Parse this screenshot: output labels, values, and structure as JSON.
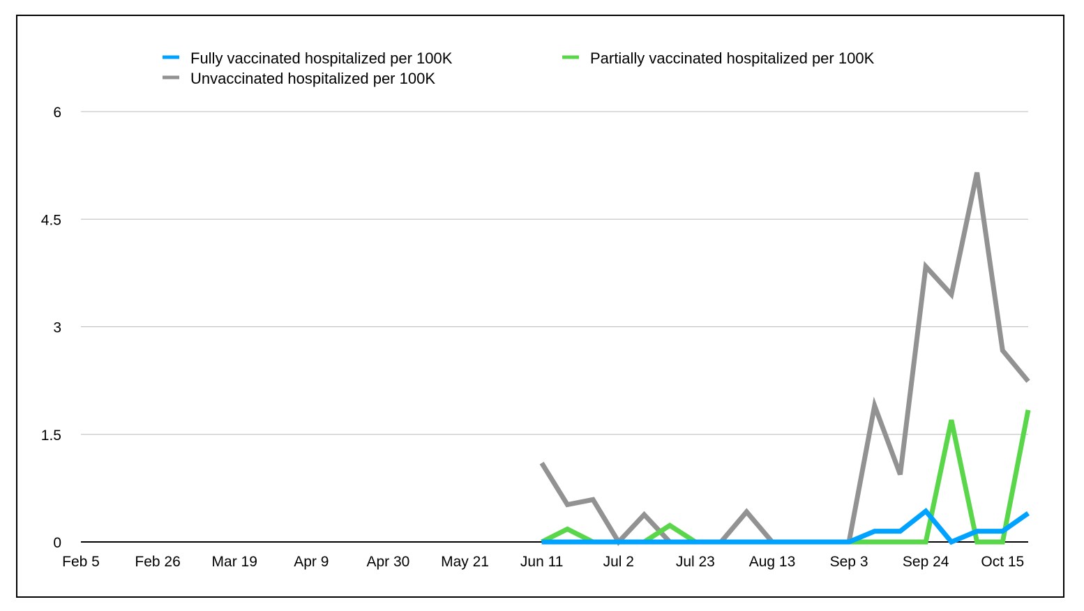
{
  "chart_data": {
    "type": "line",
    "title": "",
    "xlabel": "",
    "ylabel": "",
    "ylim": [
      0,
      6
    ],
    "yticks": [
      "0",
      "1.5",
      "3",
      "4.5",
      "6"
    ],
    "ytick_values": [
      0,
      1.5,
      3,
      4.5,
      6
    ],
    "xtick_labels": [
      "Feb 5",
      "Feb 26",
      "Mar 19",
      "Apr 9",
      "Apr 30",
      "May 21",
      "Jun 11",
      "Jul 2",
      "Jul 23",
      "Aug 13",
      "Sep 3",
      "Sep 24",
      "Oct 15"
    ],
    "x_weeks_total": 38,
    "data_start_week": 18,
    "x": [
      "Jun 11",
      "Jun 18",
      "Jun 25",
      "Jul 2",
      "Jul 9",
      "Jul 16",
      "Jul 23",
      "Jul 30",
      "Aug 6",
      "Aug 13",
      "Aug 20",
      "Aug 27",
      "Sep 3",
      "Sep 10",
      "Sep 17",
      "Sep 24",
      "Oct 1",
      "Oct 8",
      "Oct 15",
      "Oct 22"
    ],
    "grid": true,
    "legend_position": "top",
    "series": [
      {
        "name": "Fully vaccinated hospitalized per 100K",
        "color": "#00a2ff",
        "values": [
          0,
          0,
          0,
          0,
          0,
          0,
          0,
          0,
          0,
          0,
          0,
          0,
          0,
          0.15,
          0.15,
          0.43,
          0,
          0.15,
          0.15,
          0.4
        ]
      },
      {
        "name": "Partially vaccinated hospitalized per 100K",
        "color": "#5ad64a",
        "values": [
          0,
          0.18,
          0,
          0,
          0,
          0.23,
          0,
          0,
          0,
          0,
          0,
          0,
          0,
          0,
          0,
          0,
          1.7,
          0,
          0,
          1.84
        ]
      },
      {
        "name": "Unvaccinated hospitalized per 100K",
        "color": "#929292",
        "values": [
          1.1,
          0.52,
          0.59,
          0,
          0.38,
          0,
          0,
          0,
          0.42,
          0,
          0,
          0,
          0,
          1.9,
          0.94,
          3.84,
          3.45,
          5.15,
          2.67,
          2.24
        ]
      }
    ]
  }
}
